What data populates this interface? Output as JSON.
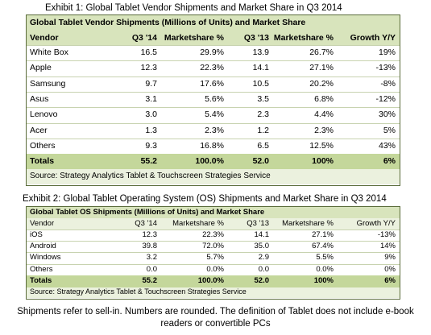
{
  "exhibit1": {
    "title": "Exhibit 1:  Global Tablet Vendor Shipments and Market Share in Q3 2014",
    "table_title": "Global Tablet Vendor Shipments (Millions of Units) and Market Share",
    "headers": [
      "Vendor",
      "Q3 '14",
      "Marketshare %",
      "Q3 '13",
      "Marketshare %",
      "Growth Y/Y"
    ],
    "rows": [
      [
        "White Box",
        "16.5",
        "29.9%",
        "13.9",
        "26.7%",
        "19%"
      ],
      [
        "Apple",
        "12.3",
        "22.3%",
        "14.1",
        "27.1%",
        "-13%"
      ],
      [
        "Samsung",
        "9.7",
        "17.6%",
        "10.5",
        "20.2%",
        "-8%"
      ],
      [
        "Asus",
        "3.1",
        "5.6%",
        "3.5",
        "6.8%",
        "-12%"
      ],
      [
        "Lenovo",
        "3.0",
        "5.4%",
        "2.3",
        "4.4%",
        "30%"
      ],
      [
        "Acer",
        "1.3",
        "2.3%",
        "1.2",
        "2.3%",
        "5%"
      ],
      [
        "Others",
        "9.3",
        "16.8%",
        "6.5",
        "12.5%",
        "43%"
      ]
    ],
    "totals": [
      "Totals",
      "55.2",
      "100.0%",
      "52.0",
      "100%",
      "6%"
    ],
    "source": "Source: Strategy Analytics Tablet & Touchscreen Strategies Service"
  },
  "exhibit2": {
    "title": "Exhibit 2:  Global Tablet Operating System (OS) Shipments and Market Share in Q3 2014",
    "table_title": "Global Tablet OS Shipments (Millions of Units) and Market Share",
    "headers": [
      "Vendor",
      "Q3 '14",
      "Marketshare %",
      "Q3 '13",
      "Marketshare %",
      "Growth Y/Y"
    ],
    "rows": [
      [
        "iOS",
        "12.3",
        "22.3%",
        "14.1",
        "27.1%",
        "-13%"
      ],
      [
        "Android",
        "39.8",
        "72.0%",
        "35.0",
        "67.4%",
        "14%"
      ],
      [
        "Windows",
        "3.2",
        "5.7%",
        "2.9",
        "5.5%",
        "9%"
      ],
      [
        "Others",
        "0.0",
        "0.0%",
        "0.0",
        "0.0%",
        "0%"
      ]
    ],
    "totals": [
      "Totals",
      "55.2",
      "100.0%",
      "52.0",
      "100%",
      "6%"
    ],
    "source": "Source: Strategy Analytics Tablet & Touchscreen Strategies Service"
  },
  "footer_note": "Shipments refer to sell-in. Numbers are rounded. The definition of Tablet does not include e-book readers or convertible PCs"
}
